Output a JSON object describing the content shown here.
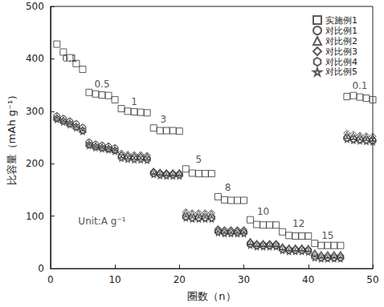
{
  "chart_data": {
    "type": "scatter",
    "x_label": "圈数（n）",
    "y_label": "比容量（mAh g⁻¹）",
    "xlim": [
      0,
      50
    ],
    "xticks": [
      0,
      10,
      20,
      30,
      40,
      50
    ],
    "ylim": [
      0,
      500
    ],
    "yticks": [
      0,
      100,
      200,
      300,
      400,
      500
    ],
    "grid": false,
    "legend": "upper right",
    "x": [
      1,
      2,
      3,
      4,
      5,
      6,
      7,
      8,
      9,
      10,
      11,
      12,
      13,
      14,
      15,
      16,
      17,
      18,
      19,
      20,
      21,
      22,
      23,
      24,
      25,
      26,
      27,
      28,
      29,
      30,
      31,
      32,
      33,
      34,
      35,
      36,
      37,
      38,
      39,
      40,
      41,
      42,
      43,
      44,
      45,
      46,
      47,
      48,
      49,
      50
    ],
    "series": [
      {
        "name": "实施例1",
        "color": "#333333",
        "marker": "square",
        "values": [
          428,
          413,
          402,
          391,
          380,
          336,
          333,
          331,
          330,
          322,
          305,
          300,
          299,
          298,
          297,
          268,
          263,
          263,
          263,
          262,
          190,
          182,
          181,
          181,
          181,
          137,
          131,
          130,
          130,
          130,
          93,
          84,
          83,
          83,
          83,
          70,
          63,
          62,
          62,
          62,
          48,
          44,
          44,
          44,
          44,
          328,
          330,
          327,
          325,
          322
        ]
      },
      {
        "name": "对比例1",
        "color": "#333333",
        "marker": "circle",
        "values": [
          290,
          285,
          280,
          275,
          268,
          240,
          236,
          234,
          232,
          229,
          215,
          213,
          212,
          212,
          211,
          183,
          181,
          180,
          180,
          180,
          100,
          98,
          98,
          98,
          98,
          72,
          70,
          70,
          70,
          70,
          48,
          45,
          45,
          45,
          45,
          38,
          36,
          36,
          36,
          35,
          25,
          22,
          22,
          22,
          22,
          250,
          248,
          247,
          246,
          245
        ]
      },
      {
        "name": "对比例2",
        "color": "#333333",
        "marker": "triangle",
        "values": [
          288,
          283,
          278,
          272,
          265,
          238,
          234,
          232,
          230,
          227,
          218,
          216,
          215,
          215,
          214,
          186,
          184,
          183,
          183,
          183,
          106,
          104,
          104,
          104,
          104,
          75,
          73,
          73,
          73,
          73,
          52,
          48,
          48,
          48,
          48,
          42,
          40,
          40,
          40,
          39,
          30,
          27,
          27,
          27,
          27,
          255,
          253,
          252,
          251,
          250
        ]
      },
      {
        "name": "对比例3",
        "color": "#333333",
        "marker": "diamond",
        "values": [
          292,
          287,
          282,
          277,
          270,
          242,
          238,
          236,
          234,
          231,
          220,
          218,
          217,
          217,
          216,
          185,
          183,
          182,
          182,
          182,
          108,
          106,
          106,
          106,
          106,
          76,
          74,
          74,
          74,
          74,
          50,
          47,
          47,
          47,
          47,
          40,
          38,
          38,
          38,
          37,
          28,
          25,
          25,
          25,
          25,
          258,
          256,
          254,
          253,
          252
        ]
      },
      {
        "name": "对比例4",
        "color": "#333333",
        "marker": "hexagon",
        "values": [
          286,
          281,
          276,
          270,
          263,
          236,
          232,
          230,
          228,
          225,
          212,
          210,
          209,
          209,
          208,
          181,
          179,
          178,
          178,
          178,
          98,
          96,
          96,
          96,
          96,
          70,
          68,
          68,
          68,
          68,
          46,
          43,
          43,
          43,
          43,
          36,
          34,
          34,
          34,
          33,
          22,
          20,
          20,
          20,
          20,
          248,
          246,
          245,
          244,
          243
        ]
      },
      {
        "name": "对比例5",
        "color": "#333333",
        "marker": "star",
        "values": [
          284,
          279,
          274,
          268,
          261,
          234,
          230,
          228,
          226,
          223,
          210,
          208,
          207,
          207,
          206,
          179,
          177,
          176,
          176,
          176,
          96,
          94,
          94,
          94,
          94,
          68,
          66,
          66,
          66,
          66,
          44,
          41,
          41,
          41,
          41,
          34,
          32,
          32,
          32,
          31,
          20,
          18,
          18,
          18,
          18,
          246,
          244,
          243,
          242,
          241
        ]
      }
    ],
    "annotations": [
      {
        "text": "0.1",
        "x": 3,
        "y": 400
      },
      {
        "text": "0.5",
        "x": 8,
        "y": 352
      },
      {
        "text": "1",
        "x": 13,
        "y": 318
      },
      {
        "text": "3",
        "x": 17.5,
        "y": 285
      },
      {
        "text": "5",
        "x": 23,
        "y": 208
      },
      {
        "text": "8",
        "x": 27.5,
        "y": 155
      },
      {
        "text": "10",
        "x": 33,
        "y": 108
      },
      {
        "text": "12",
        "x": 38.5,
        "y": 86
      },
      {
        "text": "15",
        "x": 43,
        "y": 62
      },
      {
        "text": "0.1",
        "x": 48,
        "y": 348
      },
      {
        "text": "Unit:A g⁻¹",
        "x": 8,
        "y": 90
      }
    ]
  }
}
